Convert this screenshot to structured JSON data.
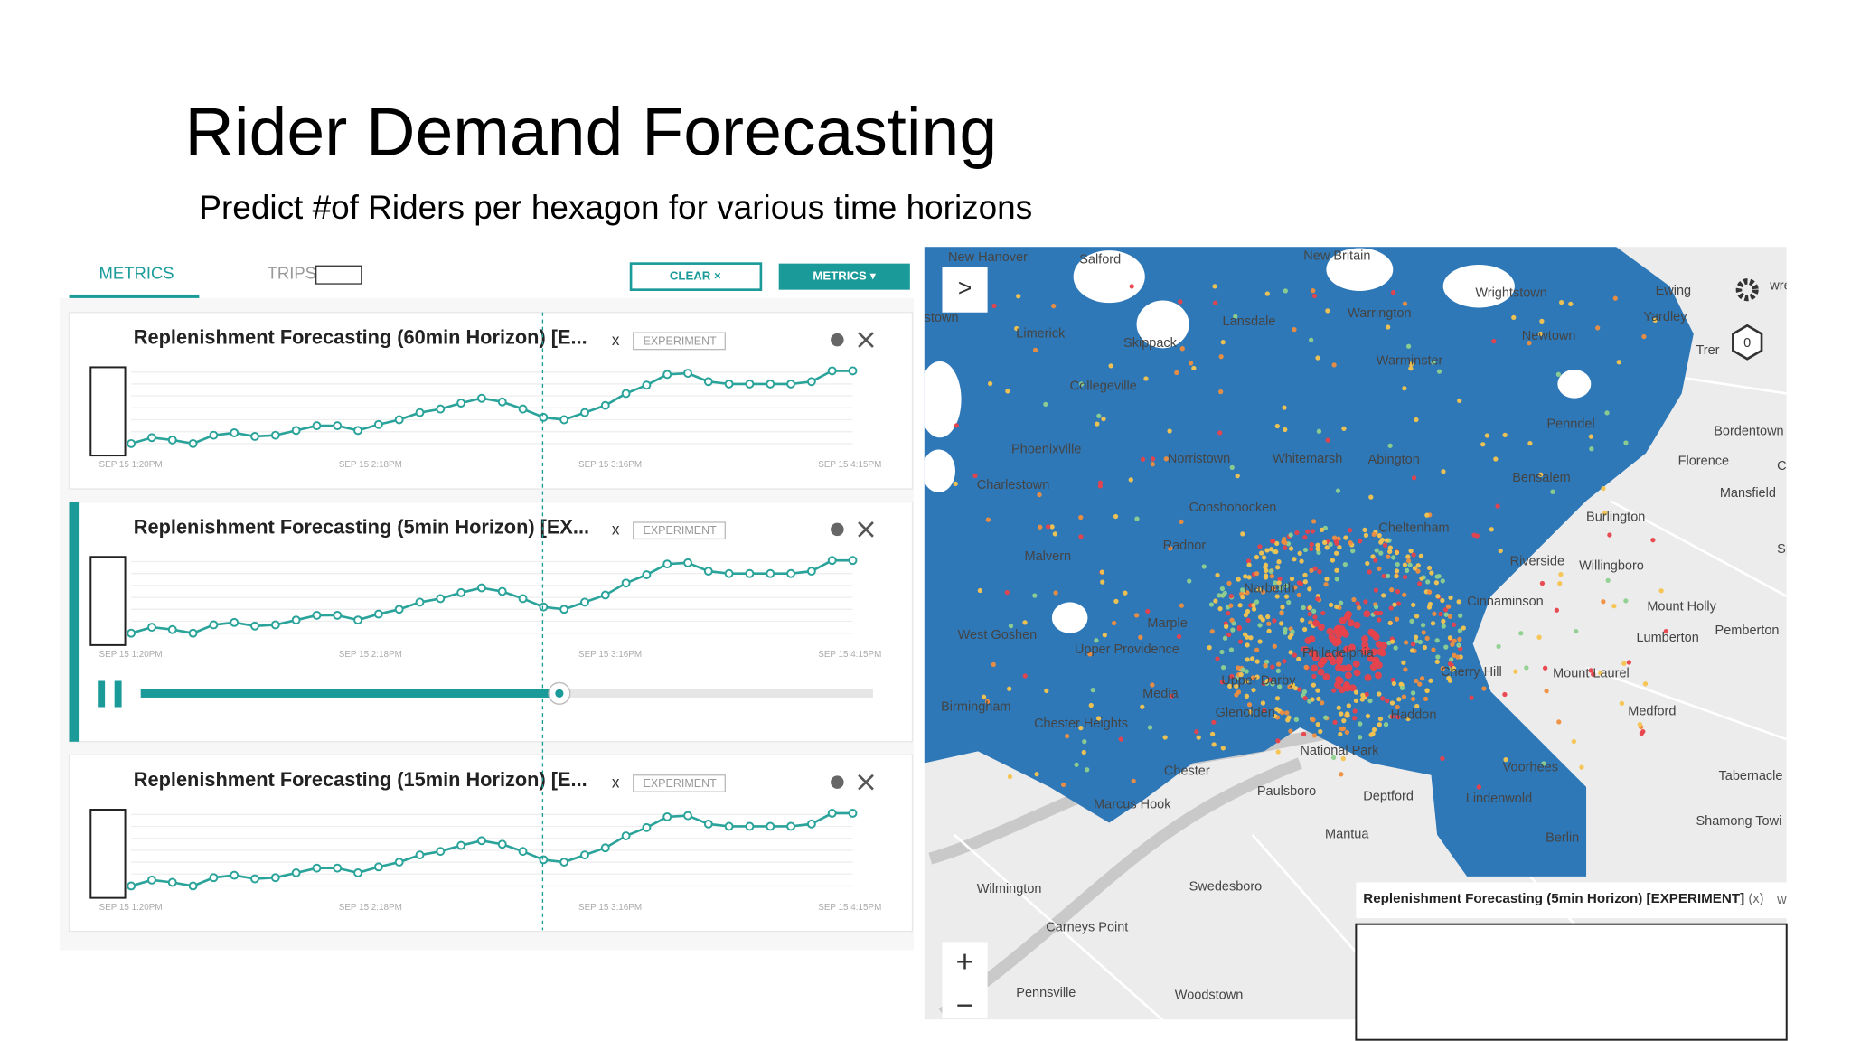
{
  "header": {
    "title": "Rider Demand Forecasting",
    "subtitle": "Predict #of Riders per hexagon for various time horizons"
  },
  "tabs": [
    "METRICS",
    "TRIPS"
  ],
  "buttons": {
    "clear": "CLEAR ×",
    "metrics": "METRICS ▾"
  },
  "panels": [
    {
      "title": "Replenishment Forecasting (60min Horizon) [E...",
      "close": "x",
      "tag": "EXPERIMENT",
      "times": [
        "SEP 15 1:20PM",
        "SEP 15 2:18PM",
        "SEP 15 3:16PM",
        "SEP 15 4:15PM"
      ],
      "values": [
        0,
        5,
        3,
        0,
        7,
        9,
        6,
        7,
        11,
        15,
        15,
        11,
        16,
        20,
        26,
        29,
        34,
        38,
        35,
        29,
        22,
        20,
        26,
        32,
        42,
        49,
        58,
        59,
        52,
        50,
        50,
        50,
        50,
        52,
        61,
        61
      ]
    },
    {
      "title": "Replenishment Forecasting (5min Horizon) [EX...",
      "close": "x",
      "tag": "EXPERIMENT",
      "times": [
        "SEP 15 1:20PM",
        "SEP 15 2:18PM",
        "SEP 15 3:16PM",
        "SEP 15 4:15PM"
      ],
      "values": [
        0,
        5,
        3,
        0,
        7,
        9,
        6,
        7,
        11,
        15,
        15,
        11,
        16,
        20,
        26,
        29,
        34,
        38,
        35,
        29,
        22,
        20,
        26,
        32,
        42,
        49,
        58,
        59,
        52,
        50,
        50,
        50,
        50,
        52,
        61,
        61
      ]
    },
    {
      "title": "Replenishment Forecasting (15min Horizon) [E...",
      "close": "x",
      "tag": "EXPERIMENT",
      "times": [
        "SEP 15 1:20PM",
        "SEP 15 2:18PM",
        "SEP 15 3:16PM",
        "SEP 15 4:15PM"
      ],
      "values": [
        0,
        5,
        3,
        0,
        7,
        9,
        6,
        7,
        11,
        15,
        15,
        11,
        16,
        20,
        26,
        29,
        34,
        38,
        35,
        29,
        22,
        20,
        26,
        32,
        42,
        49,
        58,
        59,
        52,
        50,
        50,
        50,
        50,
        52,
        61,
        61
      ]
    }
  ],
  "map": {
    "places": [
      "New Hanover",
      "Salford",
      "New Britain",
      "Wrightstown",
      "Ewing",
      "Yardley",
      "Trer",
      "Bordentown",
      "Florence",
      "Mansfield",
      "Lansdale",
      "Warrington",
      "Newtown",
      "Limerick",
      "Skippack",
      "Warminster",
      "Collegeville",
      "Penndel",
      "Phoenixville",
      "Norristown",
      "Whitemarsh",
      "Abington",
      "Bensalem",
      "Burlington",
      "Charlestown",
      "Conshohocken",
      "Cheltenham",
      "Malvern",
      "Radnor",
      "Riverside",
      "Willingboro",
      "Narberth",
      "Cinnaminson",
      "Mount Holly",
      "Pemberton",
      "Lumberton",
      "West Goshen",
      "Marple",
      "Upper Providence",
      "Philadelphia",
      "Cherry Hill",
      "Mount Laurel",
      "Upper Darby",
      "Media",
      "Birmingham",
      "Glenolden",
      "Haddon",
      "Medford",
      "Chester Heights",
      "National Park",
      "Voorhees",
      "Chester",
      "Tabernacle",
      "Paulsboro",
      "Deptford",
      "Lindenwold",
      "Marcus Hook",
      "Shamong Towi",
      "Mantua",
      "Berlin",
      "Wilmington",
      "Swedesboro",
      "Carneys Point",
      "Pennsville",
      "Woodstown",
      "stown",
      "Cl",
      "Sp",
      "wre"
    ],
    "tooltip": {
      "title": "Replenishment Forecasting (5min Horizon) [EXPERIMENT]",
      "close": "(x)",
      "extra": "w"
    },
    "controls": {
      "expand": ">",
      "zoom_in": "+",
      "zoom_out": "−",
      "hex": "0"
    }
  }
}
